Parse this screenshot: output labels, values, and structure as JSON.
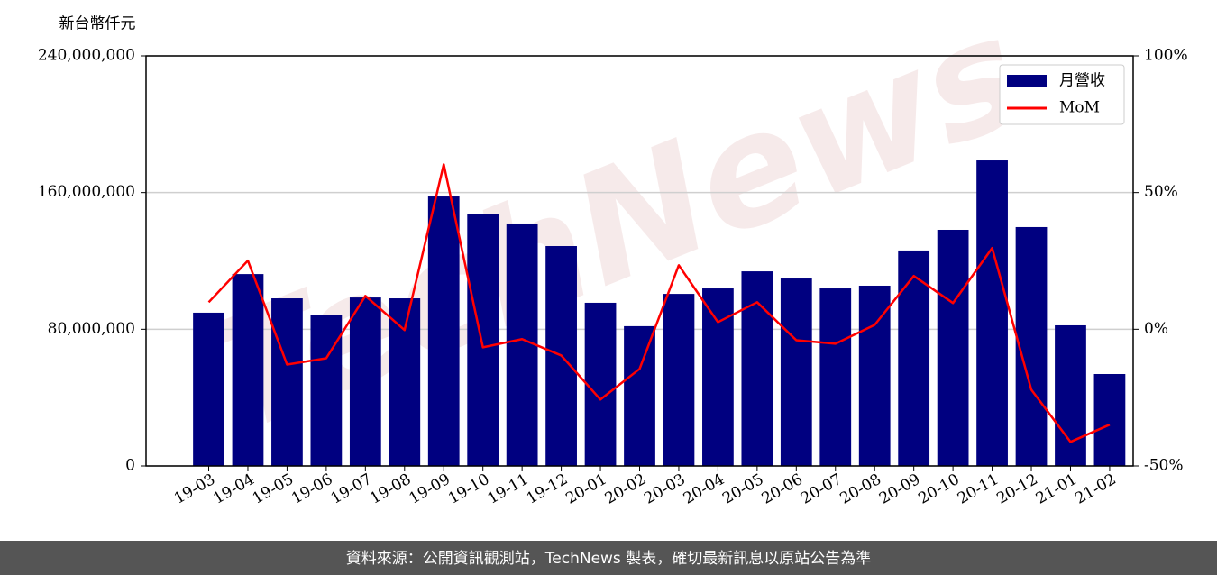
{
  "chart_data": {
    "type": "bar_line",
    "y_label": "新台幣仟元",
    "watermark": "TechNews",
    "source": "資料來源：公開資訊觀測站，TechNews 製表，確切最新訊息以原站公告為準",
    "categories": [
      "19-03",
      "19-04",
      "19-05",
      "19-06",
      "19-07",
      "19-08",
      "19-09",
      "19-10",
      "19-11",
      "19-12",
      "20-01",
      "20-02",
      "20-03",
      "20-04",
      "20-05",
      "20-06",
      "20-07",
      "20-08",
      "20-09",
      "20-10",
      "20-11",
      "20-12",
      "21-01",
      "21-02"
    ],
    "series": [
      {
        "name": "月營收",
        "color": "#000080",
        "type": "bar",
        "values": [
          89700000,
          112300000,
          98100000,
          88100000,
          98600000,
          98100000,
          157700000,
          147200000,
          141900000,
          128700000,
          95500000,
          81800000,
          100700000,
          103900000,
          113900000,
          109700000,
          103900000,
          105500000,
          126100000,
          138200000,
          178800000,
          139800000,
          82300000,
          53800000
        ]
      },
      {
        "name": "MoM",
        "color": "#ff0000",
        "type": "line",
        "axis": "y2",
        "values": [
          9.9,
          25.1,
          -12.9,
          -10.6,
          12.2,
          -0.3,
          60.3,
          -6.6,
          -3.6,
          -9.6,
          -25.7,
          -14.5,
          23.4,
          2.6,
          9.9,
          -4.0,
          -5.3,
          1.6,
          19.5,
          9.6,
          29.7,
          -22.1,
          -41.2,
          -34.9
        ]
      }
    ],
    "ylim": [
      0,
      240000000
    ],
    "yticks": [
      0,
      {
        "value": 80000000,
        "label": "80,000,000"
      },
      {
        "value": 160000000,
        "label": "160,000,000"
      },
      {
        "value": 240000000,
        "label": "240,000,000"
      }
    ],
    "y2lim": [
      -50,
      100
    ],
    "y2ticks": [
      {
        "value": -50,
        "label": "-50%"
      },
      {
        "value": 0,
        "label": "0%"
      },
      {
        "value": 50,
        "label": "50%"
      },
      {
        "value": 100,
        "label": "100%"
      }
    ],
    "grid": true,
    "legend": "upper right"
  }
}
